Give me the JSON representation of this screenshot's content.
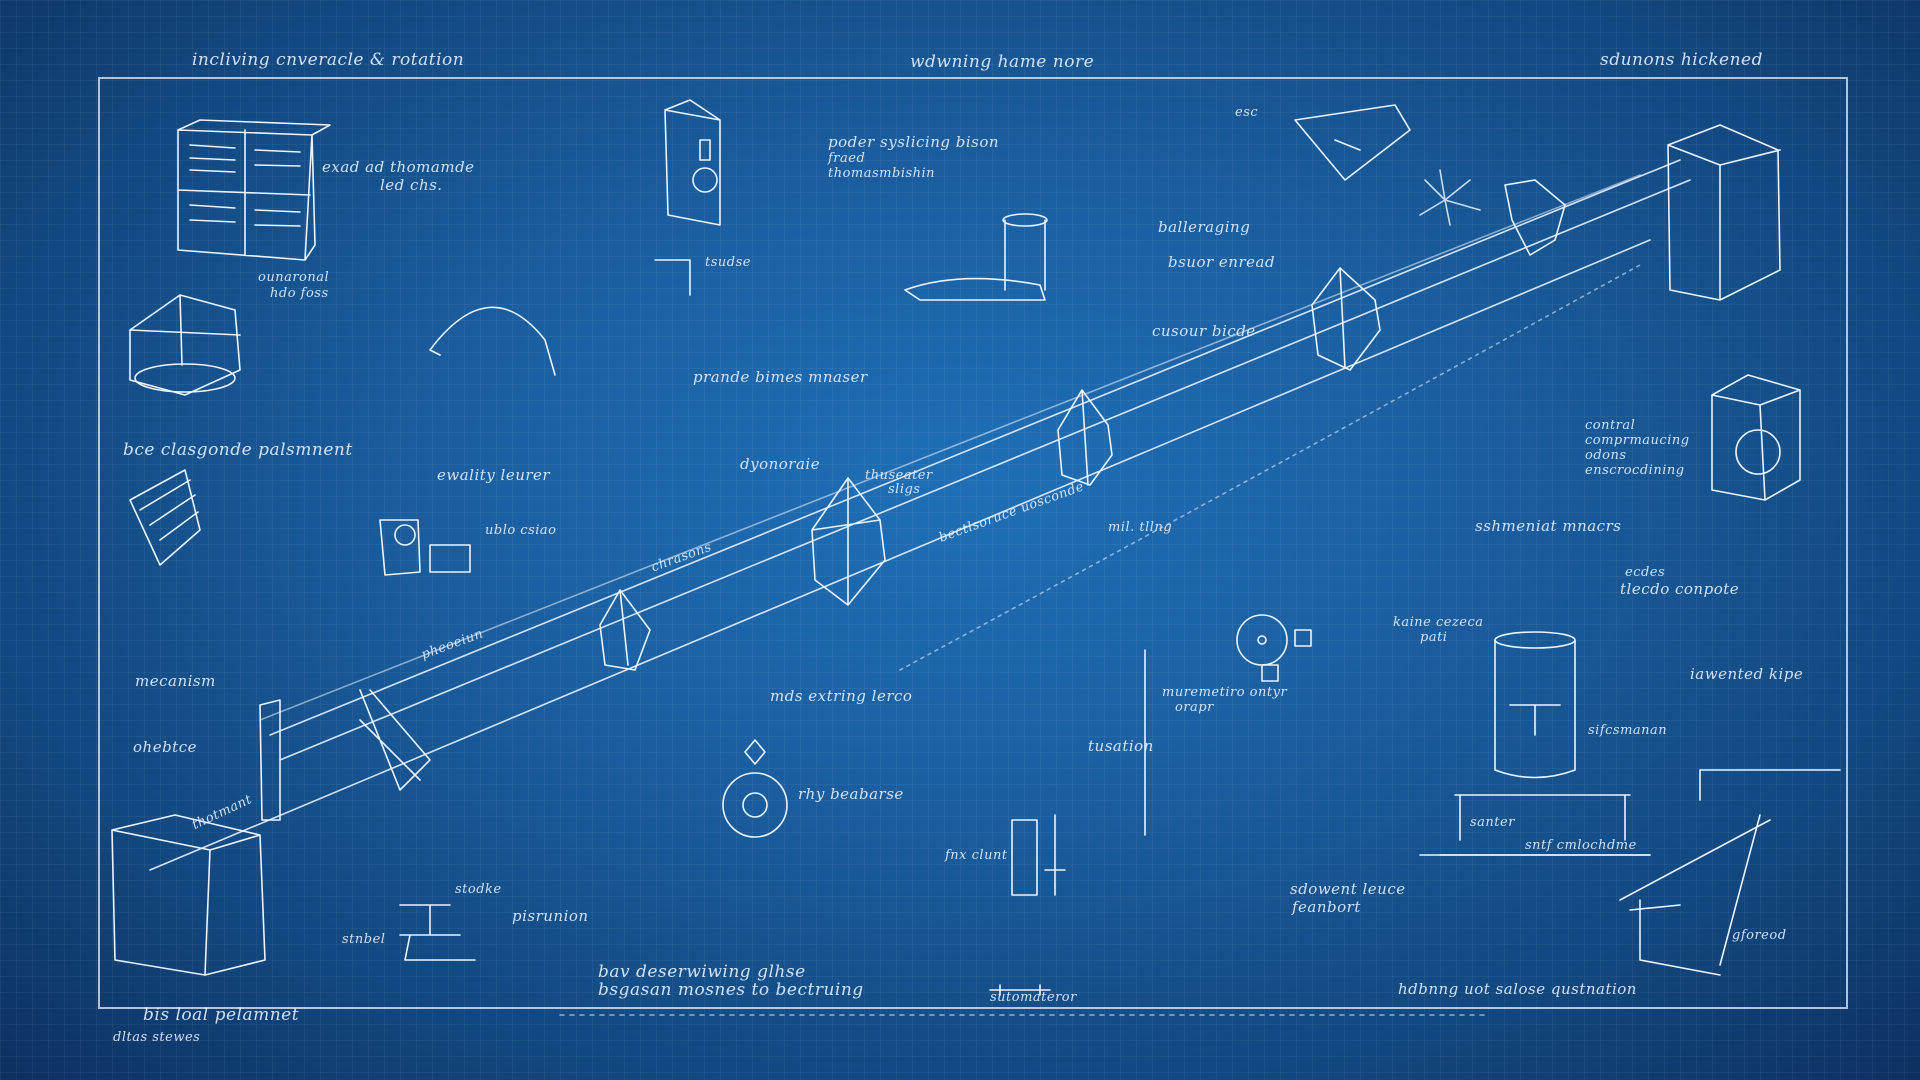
{
  "header": {
    "left": "incliving cnveracle & rotation",
    "center": "wdwning hame nore",
    "right": "sdunons hickened"
  },
  "labels": {
    "crate": "exad ad thomamde",
    "crate2": "led chs.",
    "gazebo": "ounaronal",
    "gazebo2": "hdo foss",
    "bottle1": "poder syslicing bison",
    "bottle2": "fraed",
    "bottle3": "thomasmbishin",
    "esc": "esc",
    "bracket": "tsudse",
    "balancing": "balleraging",
    "balancing2": "bsuor enread",
    "arch": "prande bimes mnaser",
    "crane": "cusour bicde",
    "placement": "bce clasgonde palsmnent",
    "quality": "ewality leurer",
    "stack": "ublo csiao",
    "dynamics": "dyonoraie",
    "prism": "thuseater",
    "prism2": "sligs",
    "beam": "bectlsoruce uosconde",
    "tilt": "mil. tllng",
    "mechanism": "mecanism",
    "shadow": "ohebtce",
    "hub": "chrasons",
    "gear": "pheoeiun",
    "stake": "thotmant",
    "lens": "mds extring lerco",
    "target": "rhy beabarse",
    "ring": "tusation",
    "spin": "muremetiro ontyr",
    "spin2": "orapr",
    "control": "contral",
    "control2": "comprmaucing",
    "control3": "odons",
    "control4": "enscrocdining",
    "matrix": "sshmeniat mnacrs",
    "composite": "ecdes",
    "composite2": "tlecdo conpote",
    "kaiser": "kaine cezeca",
    "kaiser2": "pati",
    "inverted": "iawented kipe",
    "telescope": "sifcsmanan",
    "bench": "santer",
    "bench2": "sntf cmlochdme",
    "flux": "fnx clunt",
    "solvent": "sdowent leuce",
    "solvent2": "feanbort",
    "stool": "stodke",
    "stool2": "pisrunion",
    "box": "stnbel",
    "descending": "bav deserwiwing glhse",
    "descending2": "bsgasan mosnes to bectruing",
    "baseline": "sutomateror",
    "footer_right": "hdbnng uot salose qustnation",
    "lamp": "gforeod",
    "footer_left": "bis loal pelamnet",
    "footer_left2": "dltas stewes"
  },
  "colors": {
    "background": "#1a5d9e",
    "line": "#eaf3ff"
  }
}
